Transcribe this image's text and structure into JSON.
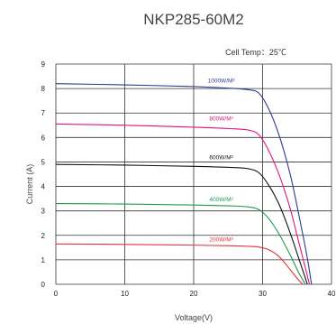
{
  "chart_data": {
    "type": "line",
    "title": "NKP285-60M2",
    "annotation": "Cell Temp：25℃",
    "xlabel": "Voltage(V)",
    "ylabel": "Current (A)",
    "xlim": [
      0,
      40
    ],
    "ylim": [
      0,
      9
    ],
    "x_ticks": [
      0,
      10,
      20,
      30,
      40
    ],
    "y_ticks": [
      0,
      1,
      2,
      3,
      4,
      5,
      6,
      7,
      8,
      9
    ],
    "grid": true,
    "series": [
      {
        "name": "1000W/M²",
        "color": "#2b3a8f",
        "points": [
          [
            0,
            8.2
          ],
          [
            10,
            8.15
          ],
          [
            20,
            8.08
          ],
          [
            26,
            8.0
          ],
          [
            28,
            7.95
          ],
          [
            29.5,
            7.8
          ],
          [
            31,
            7.1
          ],
          [
            32.5,
            6.0
          ],
          [
            34,
            4.5
          ],
          [
            35,
            3.2
          ],
          [
            36,
            1.8
          ],
          [
            36.6,
            0.9
          ],
          [
            37.1,
            0.0
          ]
        ]
      },
      {
        "name": "800W/M²",
        "color": "#e0157f",
        "points": [
          [
            0,
            6.55
          ],
          [
            10,
            6.5
          ],
          [
            20,
            6.42
          ],
          [
            26,
            6.35
          ],
          [
            28,
            6.3
          ],
          [
            29.5,
            6.1
          ],
          [
            31,
            5.4
          ],
          [
            32.5,
            4.4
          ],
          [
            34,
            3.1
          ],
          [
            35,
            2.0
          ],
          [
            36,
            0.9
          ],
          [
            36.8,
            0.0
          ]
        ]
      },
      {
        "name": "600W/M²",
        "color": "#111111",
        "points": [
          [
            0,
            4.9
          ],
          [
            10,
            4.87
          ],
          [
            20,
            4.82
          ],
          [
            26,
            4.77
          ],
          [
            28,
            4.72
          ],
          [
            29.5,
            4.55
          ],
          [
            31,
            4.0
          ],
          [
            32.5,
            3.2
          ],
          [
            34,
            2.1
          ],
          [
            35.2,
            1.1
          ],
          [
            36.5,
            0.0
          ]
        ]
      },
      {
        "name": "400W/M²",
        "color": "#1c9b4e",
        "points": [
          [
            0,
            3.3
          ],
          [
            10,
            3.28
          ],
          [
            20,
            3.24
          ],
          [
            26,
            3.2
          ],
          [
            28,
            3.16
          ],
          [
            29.5,
            3.05
          ],
          [
            31,
            2.65
          ],
          [
            32.5,
            2.0
          ],
          [
            34,
            1.2
          ],
          [
            35.2,
            0.5
          ],
          [
            36.2,
            0.0
          ]
        ]
      },
      {
        "name": "200W/M²",
        "color": "#e8323c",
        "points": [
          [
            0,
            1.65
          ],
          [
            10,
            1.63
          ],
          [
            20,
            1.6
          ],
          [
            26,
            1.57
          ],
          [
            28,
            1.55
          ],
          [
            29.5,
            1.52
          ],
          [
            31,
            1.4
          ],
          [
            32.5,
            1.1
          ],
          [
            34,
            0.6
          ],
          [
            35,
            0.25
          ],
          [
            35.8,
            0.0
          ]
        ]
      }
    ],
    "label_positions_data": [
      {
        "series": 0,
        "x": 24,
        "y": 8.25
      },
      {
        "series": 1,
        "x": 24,
        "y": 6.7
      },
      {
        "series": 2,
        "x": 24,
        "y": 5.1
      },
      {
        "series": 3,
        "x": 24,
        "y": 3.4
      },
      {
        "series": 4,
        "x": 24,
        "y": 1.75
      }
    ]
  }
}
